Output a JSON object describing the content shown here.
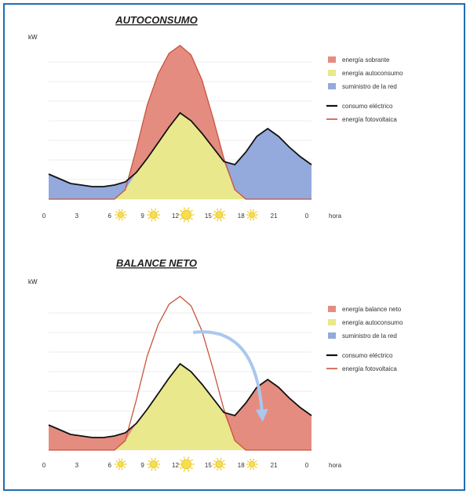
{
  "colors": {
    "sobrante": "#e58c80",
    "autoconsumo": "#e9e88c",
    "red": "#94a9dc",
    "consumo": "#111111",
    "foto": "#c9533c",
    "arrow": "#aac7ee",
    "frame": "#1f6fb2"
  },
  "icons": {
    "night": "crescent-moon-icon",
    "day": "sun-icon"
  },
  "chart_data": [
    {
      "type": "area",
      "title": "AUTOCONSUMO",
      "ylabel": "kW",
      "xlabel": "hora",
      "x_ticks": [
        {
          "label": "0",
          "icon": "moon"
        },
        {
          "label": "3",
          "icon": "moon"
        },
        {
          "label": "6",
          "icon": "sun-small"
        },
        {
          "label": "9",
          "icon": "sun"
        },
        {
          "label": "12",
          "icon": "sun-big"
        },
        {
          "label": "15",
          "icon": "sun"
        },
        {
          "label": "18",
          "icon": "sun-small"
        },
        {
          "label": "21",
          "icon": "moon"
        },
        {
          "label": "0",
          "icon": "moon"
        }
      ],
      "xlim": [
        0,
        24
      ],
      "ylim": [
        0,
        100
      ],
      "grid": true,
      "legend": [
        {
          "label": "energía sobrante",
          "kind": "area",
          "color_key": "sobrante"
        },
        {
          "label": "energía autoconsumo",
          "kind": "area",
          "color_key": "autoconsumo"
        },
        {
          "label": "suministro de la red",
          "kind": "area",
          "color_key": "red"
        },
        {
          "label": "consumo eléctrico",
          "kind": "line",
          "color_key": "consumo"
        },
        {
          "label": "energía fotovoltaica",
          "kind": "line",
          "color_key": "foto"
        }
      ],
      "fill_pv_surplus": true,
      "fill_grid": true,
      "arrow": false
    },
    {
      "type": "area",
      "title": "BALANCE NETO",
      "ylabel": "kW",
      "xlabel": "hora",
      "x_ticks": [
        {
          "label": "0",
          "icon": "moon"
        },
        {
          "label": "3",
          "icon": "moon"
        },
        {
          "label": "6",
          "icon": "sun-small"
        },
        {
          "label": "9",
          "icon": "sun"
        },
        {
          "label": "12",
          "icon": "sun-big"
        },
        {
          "label": "15",
          "icon": "sun"
        },
        {
          "label": "18",
          "icon": "sun-small"
        },
        {
          "label": "21",
          "icon": "moon"
        },
        {
          "label": "0",
          "icon": "moon"
        }
      ],
      "xlim": [
        0,
        24
      ],
      "ylim": [
        0,
        100
      ],
      "grid": true,
      "legend": [
        {
          "label": "energía balance neto",
          "kind": "area",
          "color_key": "sobrante"
        },
        {
          "label": "energía autoconsumo",
          "kind": "area",
          "color_key": "autoconsumo"
        },
        {
          "label": "suministro de la red",
          "kind": "area",
          "color_key": "red"
        },
        {
          "label": "consumo eléctrico",
          "kind": "line",
          "color_key": "consumo"
        },
        {
          "label": "energía fotovoltaica",
          "kind": "line",
          "color_key": "foto"
        }
      ],
      "fill_pv_surplus": false,
      "fill_grid": false,
      "arrow": true
    }
  ],
  "series": {
    "hours": [
      0,
      1,
      2,
      3,
      4,
      5,
      6,
      7,
      8,
      9,
      10,
      11,
      12,
      13,
      14,
      15,
      16,
      17,
      18,
      19,
      20,
      21,
      22,
      23,
      24
    ],
    "consumo": [
      16,
      13,
      10,
      9,
      8,
      8,
      9,
      11,
      17,
      26,
      36,
      46,
      55,
      50,
      42,
      33,
      24,
      22,
      30,
      40,
      45,
      40,
      33,
      27,
      22
    ],
    "fotovoltaica": [
      0,
      0,
      0,
      0,
      0,
      0,
      0,
      6,
      32,
      60,
      80,
      93,
      98,
      92,
      76,
      52,
      26,
      6,
      0,
      0,
      0,
      0,
      0,
      0,
      0
    ]
  }
}
